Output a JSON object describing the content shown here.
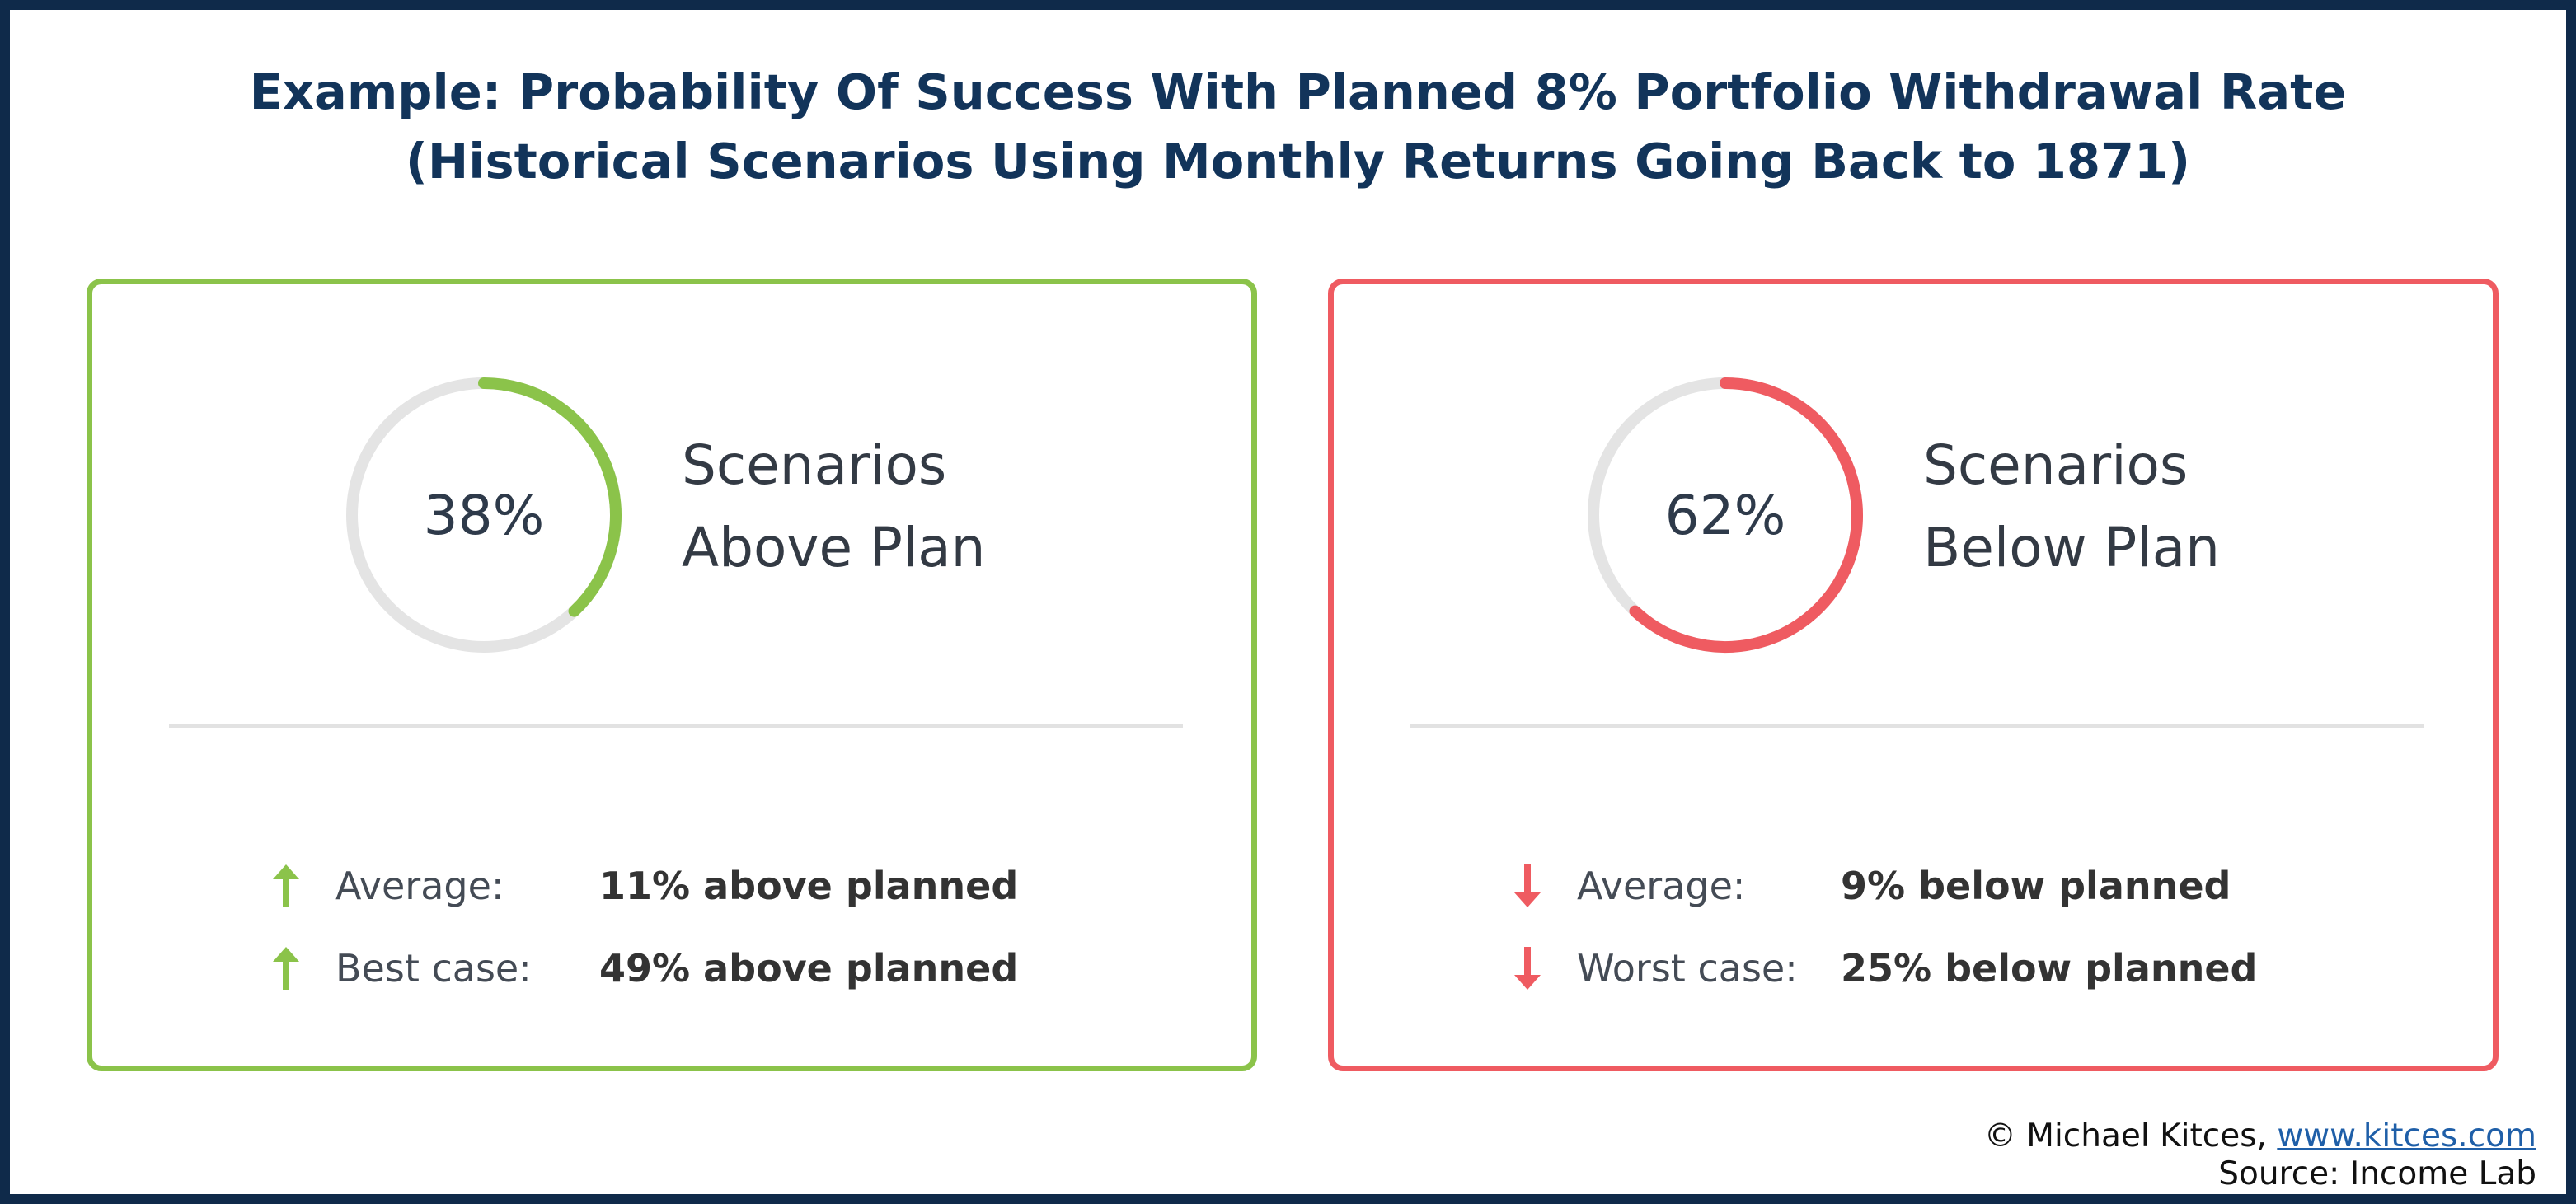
{
  "title": {
    "line1": "Example: Probability Of Success With Planned 8% Portfolio Withdrawal Rate",
    "line2": "(Historical Scenarios Using Monthly Returns Going Back to 1871)"
  },
  "colors": {
    "green": "#8bc34a",
    "red": "#ef5b61",
    "track": "#e4e4e4",
    "navy": "#12345a"
  },
  "cards": [
    {
      "percent_text": "38%",
      "label_line1": "Scenarios",
      "label_line2": "Above Plan",
      "rows": [
        {
          "icon": "arrow-up-icon",
          "label": "Average:",
          "value": "11% above planned"
        },
        {
          "icon": "arrow-up-icon",
          "label": "Best case:",
          "value": "49% above planned"
        }
      ]
    },
    {
      "percent_text": "62%",
      "label_line1": "Scenarios",
      "label_line2": "Below Plan",
      "rows": [
        {
          "icon": "arrow-down-icon",
          "label": "Average:",
          "value": "9% below planned"
        },
        {
          "icon": "arrow-down-icon",
          "label": "Worst case:",
          "value": "25% below planned"
        }
      ]
    }
  ],
  "chart_data": [
    {
      "type": "pie",
      "categories": [
        "Scenarios Above Plan"
      ],
      "values": [
        38
      ],
      "color": "#8bc34a"
    },
    {
      "type": "pie",
      "categories": [
        "Scenarios Below Plan"
      ],
      "values": [
        62
      ],
      "color": "#ef5b61"
    }
  ],
  "credit": {
    "prefix": "© Michael Kitces, ",
    "link": "www.kitces.com",
    "source": "Source: Income Lab"
  }
}
